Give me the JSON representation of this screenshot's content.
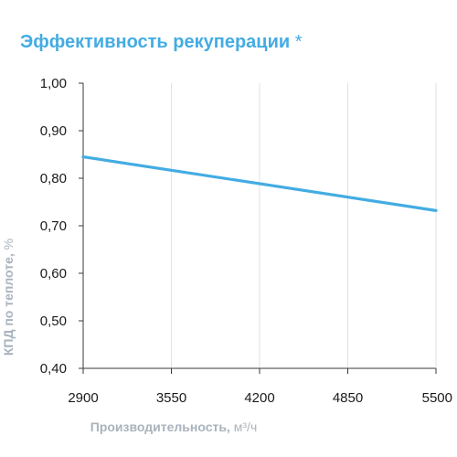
{
  "colors": {
    "accent": "#43ace2",
    "axis_label": "#a9b3bc",
    "grid": "#e2e2e2",
    "axis": "#3a3a3a"
  },
  "chart_data": {
    "type": "line",
    "title": "Эффективность рекуперации",
    "title_mark": "*",
    "xlabel": "Производительность,",
    "xlabel_unit": "м³/ч",
    "ylabel": "КПД по теплоте,",
    "ylabel_unit": "%",
    "xlim": [
      2900,
      5500
    ],
    "ylim": [
      0.4,
      1.0
    ],
    "x_ticks": [
      2900,
      3550,
      4200,
      4850,
      5500
    ],
    "x_tick_labels": [
      "2900",
      "3550",
      "4200",
      "4850",
      "5500"
    ],
    "y_ticks": [
      1.0,
      0.9,
      0.8,
      0.7,
      0.6,
      0.5,
      0.4
    ],
    "y_tick_labels": [
      "1,00",
      "0,90",
      "0,80",
      "0,70",
      "0,60",
      "0,50",
      "0,40"
    ],
    "grid": true,
    "series": [
      {
        "x": [
          2900,
          5500
        ],
        "y": [
          0.845,
          0.732
        ]
      }
    ]
  }
}
